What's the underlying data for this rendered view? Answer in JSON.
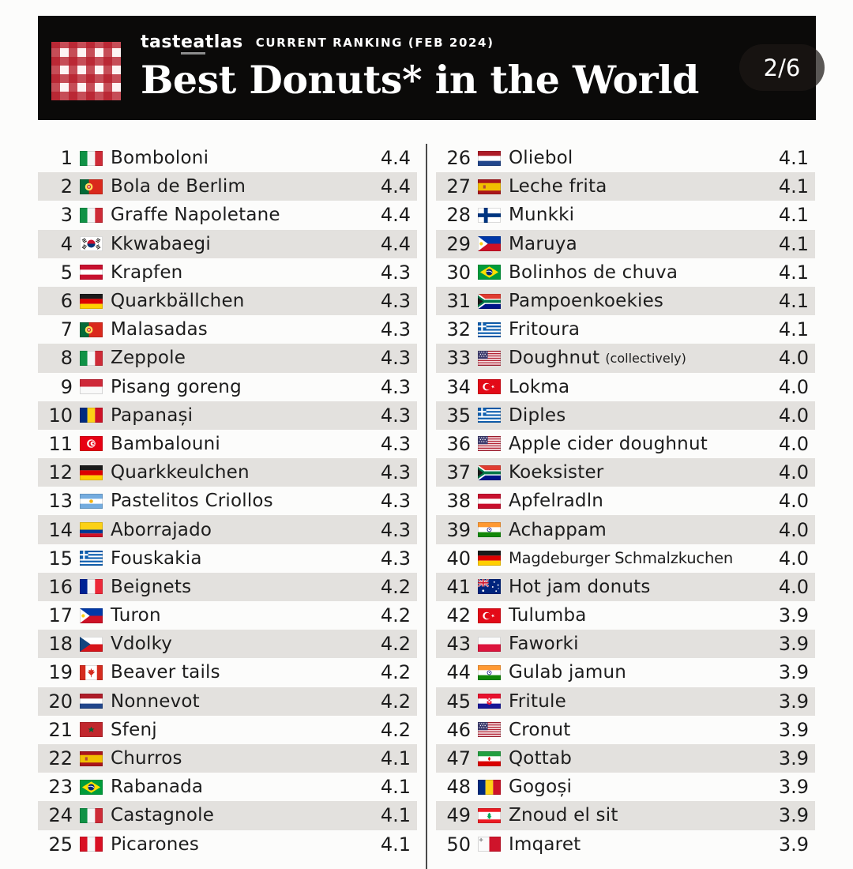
{
  "header": {
    "brand_part1": "tast",
    "brand_part2": "ea",
    "brand_part3": "tlas",
    "subtitle": "CURRENT RANKING (FEB 2024)",
    "title": "Best Donuts* in the World",
    "page_indicator": "2/6"
  },
  "colors": {
    "banner_background": "#0b0a09",
    "logo_red": "#b71e2b",
    "row_stripe": "#e3e1de",
    "text": "#1d1d1d",
    "page_background": "#fcfcfb"
  },
  "chart_data": {
    "type": "table",
    "title": "Best Donuts* in the World",
    "subtitle": "tasteatlas CURRENT RANKING (FEB 2024)",
    "page": "2/6",
    "columns": [
      "rank",
      "country",
      "name",
      "rating"
    ],
    "rows": [
      {
        "rank": 1,
        "country": "italy",
        "name": "Bomboloni",
        "rating": "4.4"
      },
      {
        "rank": 2,
        "country": "portugal",
        "name": "Bola de Berlim",
        "rating": "4.4"
      },
      {
        "rank": 3,
        "country": "italy",
        "name": "Graffe Napoletane",
        "rating": "4.4"
      },
      {
        "rank": 4,
        "country": "south-korea",
        "name": "Kkwabaegi",
        "rating": "4.4"
      },
      {
        "rank": 5,
        "country": "austria",
        "name": "Krapfen",
        "rating": "4.3"
      },
      {
        "rank": 6,
        "country": "germany",
        "name": "Quarkbällchen",
        "rating": "4.3"
      },
      {
        "rank": 7,
        "country": "portugal",
        "name": "Malasadas",
        "rating": "4.3"
      },
      {
        "rank": 8,
        "country": "italy",
        "name": "Zeppole",
        "rating": "4.3"
      },
      {
        "rank": 9,
        "country": "indonesia",
        "name": "Pisang goreng",
        "rating": "4.3"
      },
      {
        "rank": 10,
        "country": "romania",
        "name": "Papanași",
        "rating": "4.3"
      },
      {
        "rank": 11,
        "country": "tunisia",
        "name": "Bambalouni",
        "rating": "4.3"
      },
      {
        "rank": 12,
        "country": "germany",
        "name": "Quarkkeulchen",
        "rating": "4.3"
      },
      {
        "rank": 13,
        "country": "argentina",
        "name": "Pastelitos Criollos",
        "rating": "4.3"
      },
      {
        "rank": 14,
        "country": "colombia",
        "name": "Aborrajado",
        "rating": "4.3"
      },
      {
        "rank": 15,
        "country": "greece",
        "name": "Fouskakia",
        "rating": "4.3"
      },
      {
        "rank": 16,
        "country": "france",
        "name": "Beignets",
        "rating": "4.2"
      },
      {
        "rank": 17,
        "country": "philippines",
        "name": "Turon",
        "rating": "4.2"
      },
      {
        "rank": 18,
        "country": "czechia",
        "name": "Vdolky",
        "rating": "4.2"
      },
      {
        "rank": 19,
        "country": "canada",
        "name": "Beaver tails",
        "rating": "4.2"
      },
      {
        "rank": 20,
        "country": "netherlands",
        "name": "Nonnevot",
        "rating": "4.2"
      },
      {
        "rank": 21,
        "country": "morocco",
        "name": "Sfenj",
        "rating": "4.2"
      },
      {
        "rank": 22,
        "country": "spain",
        "name": "Churros",
        "rating": "4.1"
      },
      {
        "rank": 23,
        "country": "brazil",
        "name": "Rabanada",
        "rating": "4.1"
      },
      {
        "rank": 24,
        "country": "italy",
        "name": "Castagnole",
        "rating": "4.1"
      },
      {
        "rank": 25,
        "country": "peru",
        "name": "Picarones",
        "rating": "4.1"
      },
      {
        "rank": 26,
        "country": "netherlands",
        "name": "Oliebol",
        "rating": "4.1"
      },
      {
        "rank": 27,
        "country": "spain",
        "name": "Leche frita",
        "rating": "4.1"
      },
      {
        "rank": 28,
        "country": "finland",
        "name": "Munkki",
        "rating": "4.1"
      },
      {
        "rank": 29,
        "country": "philippines",
        "name": "Maruya",
        "rating": "4.1"
      },
      {
        "rank": 30,
        "country": "brazil",
        "name": "Bolinhos de chuva",
        "rating": "4.1"
      },
      {
        "rank": 31,
        "country": "south-africa",
        "name": "Pampoenkoekies",
        "rating": "4.1"
      },
      {
        "rank": 32,
        "country": "greece",
        "name": "Fritoura",
        "rating": "4.1"
      },
      {
        "rank": 33,
        "country": "usa",
        "name": "Doughnut",
        "note": "(collectively)",
        "rating": "4.0"
      },
      {
        "rank": 34,
        "country": "turkey",
        "name": "Lokma",
        "rating": "4.0"
      },
      {
        "rank": 35,
        "country": "greece",
        "name": "Diples",
        "rating": "4.0"
      },
      {
        "rank": 36,
        "country": "usa",
        "name": "Apple cider doughnut",
        "rating": "4.0"
      },
      {
        "rank": 37,
        "country": "south-africa",
        "name": "Koeksister",
        "rating": "4.0"
      },
      {
        "rank": 38,
        "country": "austria",
        "name": "Apfelradln",
        "rating": "4.0"
      },
      {
        "rank": 39,
        "country": "india",
        "name": "Achappam",
        "rating": "4.0"
      },
      {
        "rank": 40,
        "country": "germany",
        "name": "Magdeburger Schmalzkuchen",
        "rating": "4.0"
      },
      {
        "rank": 41,
        "country": "australia",
        "name": "Hot jam donuts",
        "rating": "4.0"
      },
      {
        "rank": 42,
        "country": "turkey",
        "name": "Tulumba",
        "rating": "3.9"
      },
      {
        "rank": 43,
        "country": "poland",
        "name": "Faworki",
        "rating": "3.9"
      },
      {
        "rank": 44,
        "country": "india",
        "name": "Gulab jamun",
        "rating": "3.9"
      },
      {
        "rank": 45,
        "country": "croatia",
        "name": "Fritule",
        "rating": "3.9"
      },
      {
        "rank": 46,
        "country": "usa",
        "name": "Cronut",
        "rating": "3.9"
      },
      {
        "rank": 47,
        "country": "iran",
        "name": "Qottab",
        "rating": "3.9"
      },
      {
        "rank": 48,
        "country": "romania",
        "name": "Gogoși",
        "rating": "3.9"
      },
      {
        "rank": 49,
        "country": "lebanon",
        "name": "Znoud el sit",
        "rating": "3.9"
      },
      {
        "rank": 50,
        "country": "malta",
        "name": "Imqaret",
        "rating": "3.9"
      }
    ]
  }
}
